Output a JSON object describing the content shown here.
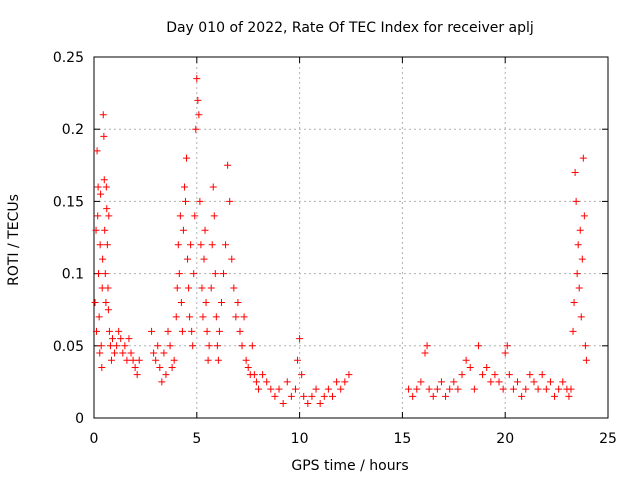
{
  "chart_data": {
    "type": "scatter",
    "title": "Day 010 of 2022, Rate Of TEC Index for receiver aplj",
    "xlabel": "GPS time / hours",
    "ylabel": "ROTI / TECUs",
    "xlim": [
      0,
      25
    ],
    "ylim": [
      0,
      0.25
    ],
    "x_ticks": [
      0,
      5,
      10,
      15,
      20,
      25
    ],
    "x_tick_labels": [
      "0",
      "5",
      "10",
      "15",
      "20",
      "25"
    ],
    "y_ticks": [
      0,
      0.05,
      0.1,
      0.15,
      0.2,
      0.25
    ],
    "y_tick_labels": [
      "0",
      "0.05",
      "0.1",
      "0.15",
      "0.2",
      "0.25"
    ],
    "grid": true,
    "marker": "+",
    "color": "#ff0000",
    "series": [
      {
        "name": "ROTI",
        "points": [
          [
            0.05,
            0.08
          ],
          [
            0.1,
            0.13
          ],
          [
            0.12,
            0.06
          ],
          [
            0.15,
            0.185
          ],
          [
            0.18,
            0.14
          ],
          [
            0.2,
            0.16
          ],
          [
            0.22,
            0.1
          ],
          [
            0.25,
            0.07
          ],
          [
            0.28,
            0.045
          ],
          [
            0.3,
            0.12
          ],
          [
            0.32,
            0.155
          ],
          [
            0.35,
            0.05
          ],
          [
            0.38,
            0.035
          ],
          [
            0.4,
            0.09
          ],
          [
            0.42,
            0.11
          ],
          [
            0.45,
            0.21
          ],
          [
            0.48,
            0.195
          ],
          [
            0.5,
            0.165
          ],
          [
            0.52,
            0.13
          ],
          [
            0.55,
            0.1
          ],
          [
            0.58,
            0.08
          ],
          [
            0.6,
            0.16
          ],
          [
            0.62,
            0.145
          ],
          [
            0.65,
            0.12
          ],
          [
            0.68,
            0.09
          ],
          [
            0.7,
            0.075
          ],
          [
            0.72,
            0.14
          ],
          [
            0.75,
            0.06
          ],
          [
            0.8,
            0.05
          ],
          [
            0.85,
            0.04
          ],
          [
            0.9,
            0.055
          ],
          [
            1.0,
            0.045
          ],
          [
            1.1,
            0.05
          ],
          [
            1.2,
            0.06
          ],
          [
            1.3,
            0.055
          ],
          [
            1.4,
            0.045
          ],
          [
            1.5,
            0.05
          ],
          [
            1.6,
            0.04
          ],
          [
            1.7,
            0.055
          ],
          [
            1.8,
            0.045
          ],
          [
            1.9,
            0.04
          ],
          [
            2.0,
            0.035
          ],
          [
            2.1,
            0.03
          ],
          [
            2.2,
            0.04
          ],
          [
            2.8,
            0.06
          ],
          [
            2.9,
            0.045
          ],
          [
            3.0,
            0.04
          ],
          [
            3.1,
            0.05
          ],
          [
            3.2,
            0.035
          ],
          [
            3.3,
            0.025
          ],
          [
            3.4,
            0.045
          ],
          [
            3.5,
            0.03
          ],
          [
            3.6,
            0.06
          ],
          [
            3.7,
            0.05
          ],
          [
            3.8,
            0.035
          ],
          [
            3.9,
            0.04
          ],
          [
            4.0,
            0.07
          ],
          [
            4.05,
            0.09
          ],
          [
            4.1,
            0.12
          ],
          [
            4.15,
            0.1
          ],
          [
            4.2,
            0.14
          ],
          [
            4.25,
            0.08
          ],
          [
            4.3,
            0.06
          ],
          [
            4.35,
            0.13
          ],
          [
            4.4,
            0.16
          ],
          [
            4.45,
            0.15
          ],
          [
            4.5,
            0.18
          ],
          [
            4.55,
            0.11
          ],
          [
            4.6,
            0.09
          ],
          [
            4.65,
            0.07
          ],
          [
            4.7,
            0.12
          ],
          [
            4.75,
            0.06
          ],
          [
            4.8,
            0.05
          ],
          [
            4.85,
            0.1
          ],
          [
            4.9,
            0.14
          ],
          [
            4.95,
            0.2
          ],
          [
            5.0,
            0.235
          ],
          [
            5.05,
            0.22
          ],
          [
            5.1,
            0.21
          ],
          [
            5.15,
            0.15
          ],
          [
            5.2,
            0.12
          ],
          [
            5.25,
            0.09
          ],
          [
            5.3,
            0.07
          ],
          [
            5.35,
            0.11
          ],
          [
            5.4,
            0.13
          ],
          [
            5.45,
            0.08
          ],
          [
            5.5,
            0.06
          ],
          [
            5.55,
            0.04
          ],
          [
            5.6,
            0.05
          ],
          [
            5.7,
            0.09
          ],
          [
            5.75,
            0.12
          ],
          [
            5.8,
            0.16
          ],
          [
            5.85,
            0.14
          ],
          [
            5.9,
            0.1
          ],
          [
            5.95,
            0.07
          ],
          [
            6.0,
            0.05
          ],
          [
            6.05,
            0.04
          ],
          [
            6.1,
            0.06
          ],
          [
            6.2,
            0.08
          ],
          [
            6.3,
            0.1
          ],
          [
            6.4,
            0.12
          ],
          [
            6.5,
            0.175
          ],
          [
            6.6,
            0.15
          ],
          [
            6.7,
            0.11
          ],
          [
            6.8,
            0.09
          ],
          [
            6.9,
            0.07
          ],
          [
            7.0,
            0.08
          ],
          [
            7.1,
            0.06
          ],
          [
            7.2,
            0.05
          ],
          [
            7.3,
            0.07
          ],
          [
            7.4,
            0.04
          ],
          [
            7.5,
            0.035
          ],
          [
            7.6,
            0.03
          ],
          [
            7.7,
            0.05
          ],
          [
            7.8,
            0.03
          ],
          [
            7.9,
            0.025
          ],
          [
            8.0,
            0.02
          ],
          [
            8.2,
            0.03
          ],
          [
            8.4,
            0.025
          ],
          [
            8.6,
            0.02
          ],
          [
            8.8,
            0.015
          ],
          [
            9.0,
            0.02
          ],
          [
            9.2,
            0.01
          ],
          [
            9.4,
            0.025
          ],
          [
            9.6,
            0.015
          ],
          [
            9.8,
            0.02
          ],
          [
            9.9,
            0.04
          ],
          [
            10.0,
            0.055
          ],
          [
            10.1,
            0.03
          ],
          [
            10.2,
            0.015
          ],
          [
            10.4,
            0.01
          ],
          [
            10.6,
            0.015
          ],
          [
            10.8,
            0.02
          ],
          [
            11.0,
            0.01
          ],
          [
            11.2,
            0.015
          ],
          [
            11.4,
            0.02
          ],
          [
            11.6,
            0.015
          ],
          [
            11.8,
            0.025
          ],
          [
            12.0,
            0.02
          ],
          [
            12.2,
            0.025
          ],
          [
            12.4,
            0.03
          ],
          [
            15.3,
            0.02
          ],
          [
            15.5,
            0.015
          ],
          [
            15.7,
            0.02
          ],
          [
            15.9,
            0.025
          ],
          [
            16.1,
            0.045
          ],
          [
            16.2,
            0.05
          ],
          [
            16.3,
            0.02
          ],
          [
            16.5,
            0.015
          ],
          [
            16.7,
            0.02
          ],
          [
            16.9,
            0.025
          ],
          [
            17.1,
            0.015
          ],
          [
            17.3,
            0.02
          ],
          [
            17.5,
            0.025
          ],
          [
            17.7,
            0.02
          ],
          [
            17.9,
            0.03
          ],
          [
            18.1,
            0.04
          ],
          [
            18.3,
            0.035
          ],
          [
            18.5,
            0.02
          ],
          [
            18.7,
            0.05
          ],
          [
            18.9,
            0.03
          ],
          [
            19.1,
            0.035
          ],
          [
            19.3,
            0.025
          ],
          [
            19.5,
            0.03
          ],
          [
            19.7,
            0.025
          ],
          [
            19.9,
            0.02
          ],
          [
            20.0,
            0.045
          ],
          [
            20.1,
            0.05
          ],
          [
            20.2,
            0.03
          ],
          [
            20.4,
            0.02
          ],
          [
            20.6,
            0.025
          ],
          [
            20.8,
            0.015
          ],
          [
            21.0,
            0.02
          ],
          [
            21.2,
            0.03
          ],
          [
            21.4,
            0.025
          ],
          [
            21.6,
            0.02
          ],
          [
            21.8,
            0.03
          ],
          [
            22.0,
            0.02
          ],
          [
            22.2,
            0.025
          ],
          [
            22.4,
            0.015
          ],
          [
            22.6,
            0.02
          ],
          [
            22.8,
            0.025
          ],
          [
            23.0,
            0.02
          ],
          [
            23.1,
            0.015
          ],
          [
            23.2,
            0.02
          ],
          [
            23.3,
            0.06
          ],
          [
            23.35,
            0.08
          ],
          [
            23.4,
            0.17
          ],
          [
            23.45,
            0.15
          ],
          [
            23.5,
            0.1
          ],
          [
            23.55,
            0.12
          ],
          [
            23.6,
            0.09
          ],
          [
            23.65,
            0.13
          ],
          [
            23.7,
            0.07
          ],
          [
            23.75,
            0.11
          ],
          [
            23.8,
            0.18
          ],
          [
            23.85,
            0.14
          ],
          [
            23.9,
            0.05
          ],
          [
            23.95,
            0.04
          ]
        ]
      }
    ]
  }
}
